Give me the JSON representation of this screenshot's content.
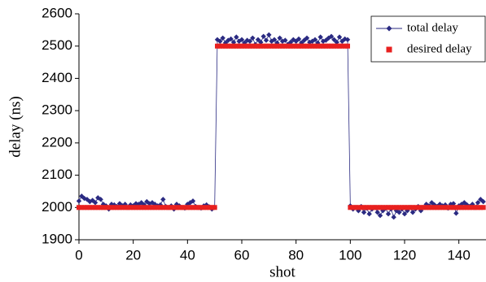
{
  "chart_data": {
    "type": "scatter-line",
    "x_label": "shot",
    "y_label": "delay (ns)",
    "x": [
      0,
      1,
      2,
      3,
      4,
      5,
      6,
      7,
      8,
      9,
      10,
      11,
      12,
      13,
      14,
      15,
      16,
      17,
      18,
      19,
      20,
      21,
      22,
      23,
      24,
      25,
      26,
      27,
      28,
      29,
      30,
      31,
      32,
      33,
      34,
      35,
      36,
      37,
      38,
      39,
      40,
      41,
      42,
      43,
      44,
      45,
      46,
      47,
      48,
      49,
      50,
      51,
      52,
      53,
      54,
      55,
      56,
      57,
      58,
      59,
      60,
      61,
      62,
      63,
      64,
      65,
      66,
      67,
      68,
      69,
      70,
      71,
      72,
      73,
      74,
      75,
      76,
      77,
      78,
      79,
      80,
      81,
      82,
      83,
      84,
      85,
      86,
      87,
      88,
      89,
      90,
      91,
      92,
      93,
      94,
      95,
      96,
      97,
      98,
      99,
      100,
      101,
      102,
      103,
      104,
      105,
      106,
      107,
      108,
      109,
      110,
      111,
      112,
      113,
      114,
      115,
      116,
      117,
      118,
      119,
      120,
      121,
      122,
      123,
      124,
      125,
      126,
      127,
      128,
      129,
      130,
      131,
      132,
      133,
      134,
      135,
      136,
      137,
      138,
      139,
      140,
      141,
      142,
      143,
      144,
      145,
      146,
      147,
      148,
      149
    ],
    "series": [
      {
        "name": "total delay",
        "color": "#2a2a82",
        "style": "line-diamond",
        "values": [
          2020,
          2035,
          2028,
          2025,
          2018,
          2022,
          2015,
          2030,
          2025,
          2010,
          2005,
          1995,
          2010,
          2008,
          2003,
          2012,
          2005,
          2010,
          2000,
          2008,
          2005,
          2012,
          2010,
          2015,
          2008,
          2018,
          2012,
          2015,
          2010,
          2005,
          2008,
          2025,
          2003,
          2000,
          2005,
          1995,
          2010,
          2005,
          2000,
          1998,
          2010,
          2015,
          2020,
          2003,
          2000,
          1998,
          2005,
          2008,
          2002,
          1995,
          2000,
          2520,
          2515,
          2525,
          2510,
          2518,
          2522,
          2512,
          2528,
          2515,
          2520,
          2510,
          2518,
          2515,
          2525,
          2505,
          2520,
          2512,
          2530,
          2518,
          2535,
          2515,
          2520,
          2510,
          2525,
          2515,
          2518,
          2505,
          2512,
          2520,
          2515,
          2522,
          2510,
          2518,
          2525,
          2512,
          2515,
          2520,
          2510,
          2528,
          2515,
          2518,
          2525,
          2530,
          2520,
          2512,
          2528,
          2515,
          2522,
          2520,
          2005,
          1995,
          2000,
          1990,
          2003,
          1985,
          1998,
          1980,
          1995,
          2000,
          1985,
          1975,
          1990,
          1998,
          1980,
          1995,
          1970,
          1990,
          1985,
          1995,
          1980,
          1990,
          2000,
          1985,
          1995,
          2003,
          1990,
          2000,
          2010,
          2005,
          2015,
          2008,
          2003,
          2010,
          2005,
          2008,
          1998,
          2010,
          2012,
          1982,
          2005,
          2010,
          2015,
          2008,
          2003,
          2010,
          2000,
          2015,
          2025,
          2018
        ]
      },
      {
        "name": "desired delay",
        "color": "#e8201f",
        "style": "square",
        "values": [
          2000,
          2000,
          2000,
          2000,
          2000,
          2000,
          2000,
          2000,
          2000,
          2000,
          2000,
          2000,
          2000,
          2000,
          2000,
          2000,
          2000,
          2000,
          2000,
          2000,
          2000,
          2000,
          2000,
          2000,
          2000,
          2000,
          2000,
          2000,
          2000,
          2000,
          2000,
          2000,
          2000,
          2000,
          2000,
          2000,
          2000,
          2000,
          2000,
          2000,
          2000,
          2000,
          2000,
          2000,
          2000,
          2000,
          2000,
          2000,
          2000,
          2000,
          2000,
          2500,
          2500,
          2500,
          2500,
          2500,
          2500,
          2500,
          2500,
          2500,
          2500,
          2500,
          2500,
          2500,
          2500,
          2500,
          2500,
          2500,
          2500,
          2500,
          2500,
          2500,
          2500,
          2500,
          2500,
          2500,
          2500,
          2500,
          2500,
          2500,
          2500,
          2500,
          2500,
          2500,
          2500,
          2500,
          2500,
          2500,
          2500,
          2500,
          2500,
          2500,
          2500,
          2500,
          2500,
          2500,
          2500,
          2500,
          2500,
          2500,
          2000,
          2000,
          2000,
          2000,
          2000,
          2000,
          2000,
          2000,
          2000,
          2000,
          2000,
          2000,
          2000,
          2000,
          2000,
          2000,
          2000,
          2000,
          2000,
          2000,
          2000,
          2000,
          2000,
          2000,
          2000,
          2000,
          2000,
          2000,
          2000,
          2000,
          2000,
          2000,
          2000,
          2000,
          2000,
          2000,
          2000,
          2000,
          2000,
          2000,
          2000,
          2000,
          2000,
          2000,
          2000,
          2000,
          2000,
          2000,
          2000,
          2000
        ]
      }
    ],
    "xlim": [
      0,
      150
    ],
    "xticks": [
      0,
      20,
      40,
      60,
      80,
      100,
      120,
      140
    ],
    "ylim": [
      1900,
      2600
    ],
    "yticks": [
      1900,
      2000,
      2100,
      2200,
      2300,
      2400,
      2500,
      2600
    ],
    "legend": "upper right"
  }
}
